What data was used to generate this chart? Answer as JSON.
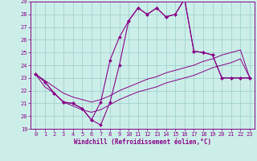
{
  "xlabel": "Windchill (Refroidissement éolien,°C)",
  "bg_color": "#cceee8",
  "line_color": "#880088",
  "grid_color": "#99cccc",
  "xlim": [
    -0.5,
    23.5
  ],
  "ylim": [
    19,
    29
  ],
  "yticks": [
    19,
    20,
    21,
    22,
    23,
    24,
    25,
    26,
    27,
    28,
    29
  ],
  "xticks": [
    0,
    1,
    2,
    3,
    4,
    5,
    6,
    7,
    8,
    9,
    10,
    11,
    12,
    13,
    14,
    15,
    16,
    17,
    18,
    19,
    20,
    21,
    22,
    23
  ],
  "hours": [
    0,
    1,
    2,
    3,
    4,
    5,
    6,
    7,
    8,
    9,
    10,
    11,
    12,
    13,
    14,
    15,
    16,
    17,
    18,
    19,
    20,
    21,
    22,
    23
  ],
  "line1": [
    23.3,
    22.7,
    21.8,
    21.1,
    21.0,
    20.6,
    19.7,
    19.3,
    21.1,
    24.0,
    27.5,
    28.5,
    28.0,
    28.5,
    27.8,
    28.0,
    29.2,
    25.1,
    25.0,
    24.8,
    23.0,
    23.0,
    23.0,
    23.0
  ],
  "line2": [
    23.3,
    22.7,
    21.8,
    21.1,
    21.0,
    20.6,
    19.7,
    21.1,
    24.4,
    26.2,
    27.5,
    28.5,
    28.0,
    28.5,
    27.8,
    28.0,
    29.2,
    25.1,
    25.0,
    24.8,
    23.0,
    23.0,
    23.0,
    23.0
  ],
  "line3_top": [
    23.3,
    22.8,
    22.3,
    21.8,
    21.5,
    21.3,
    21.1,
    21.3,
    21.6,
    22.0,
    22.3,
    22.6,
    22.9,
    23.1,
    23.4,
    23.6,
    23.8,
    24.0,
    24.3,
    24.5,
    24.8,
    25.0,
    25.2,
    23.0
  ],
  "line3_bot": [
    23.3,
    22.3,
    21.8,
    21.1,
    20.8,
    20.5,
    20.3,
    20.5,
    20.9,
    21.3,
    21.6,
    21.9,
    22.1,
    22.3,
    22.6,
    22.8,
    23.0,
    23.2,
    23.5,
    23.8,
    24.0,
    24.2,
    24.5,
    23.0
  ]
}
